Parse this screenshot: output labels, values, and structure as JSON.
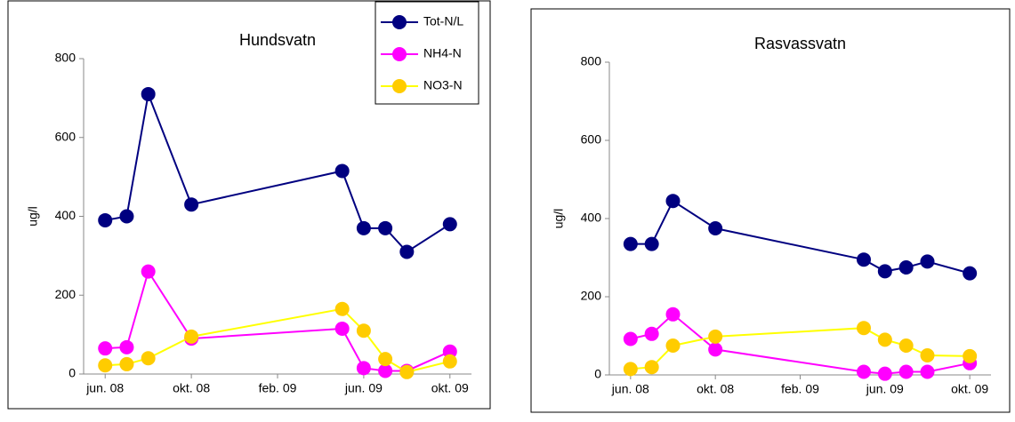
{
  "chart_data": [
    {
      "type": "line",
      "title": "Hundsvatn",
      "y_label": "ug/l",
      "x": [
        "2008-06",
        "2008-07",
        "2008-08",
        "2008-10",
        "2009-05",
        "2009-06",
        "2009-07",
        "2009-08",
        "2009-10"
      ],
      "series": [
        {
          "name": "Tot-N/L",
          "color": "#000080",
          "values": [
            390,
            400,
            710,
            430,
            515,
            370,
            370,
            310,
            380
          ]
        },
        {
          "name": "NH4-N",
          "color": "#ff00ff",
          "values": [
            65,
            68,
            260,
            90,
            115,
            15,
            8,
            8,
            57
          ]
        },
        {
          "name": "NO3-N",
          "color": "#ffcc00",
          "values": [
            22,
            25,
            40,
            95,
            165,
            110,
            38,
            5,
            32
          ]
        }
      ],
      "xlim": [
        "2008-05",
        "2009-11"
      ],
      "xticks": [
        {
          "value": "2008-06",
          "label": "jun. 08"
        },
        {
          "value": "2008-10",
          "label": "okt. 08"
        },
        {
          "value": "2009-02",
          "label": "feb. 09"
        },
        {
          "value": "2009-06",
          "label": "jun. 09"
        },
        {
          "value": "2009-10",
          "label": "okt. 09"
        }
      ],
      "ylim": [
        0,
        800
      ],
      "yticks": [
        0,
        200,
        400,
        600,
        800
      ],
      "legend": "upper right"
    },
    {
      "type": "line",
      "title": "Rasvassvatn",
      "y_label": "ug/l",
      "x": [
        "2008-06",
        "2008-07",
        "2008-08",
        "2008-10",
        "2009-05",
        "2009-06",
        "2009-07",
        "2009-08",
        "2009-10"
      ],
      "series": [
        {
          "name": "Tot-N/L",
          "color": "#000080",
          "values": [
            335,
            335,
            445,
            375,
            295,
            265,
            275,
            290,
            260
          ]
        },
        {
          "name": "NH4-N",
          "color": "#ff00ff",
          "values": [
            92,
            105,
            155,
            65,
            8,
            3,
            8,
            8,
            30
          ]
        },
        {
          "name": "NO3-N",
          "color": "#ffcc00",
          "values": [
            15,
            20,
            75,
            98,
            120,
            90,
            75,
            50,
            48
          ]
        }
      ],
      "xlim": [
        "2008-05",
        "2009-11"
      ],
      "xticks": [
        {
          "value": "2008-06",
          "label": "jun. 08"
        },
        {
          "value": "2008-10",
          "label": "okt. 08"
        },
        {
          "value": "2009-02",
          "label": "feb. 09"
        },
        {
          "value": "2009-06",
          "label": "jun. 09"
        },
        {
          "value": "2009-10",
          "label": "okt. 09"
        }
      ],
      "ylim": [
        0,
        800
      ],
      "yticks": [
        0,
        200,
        400,
        600,
        800
      ],
      "legend": false
    }
  ]
}
